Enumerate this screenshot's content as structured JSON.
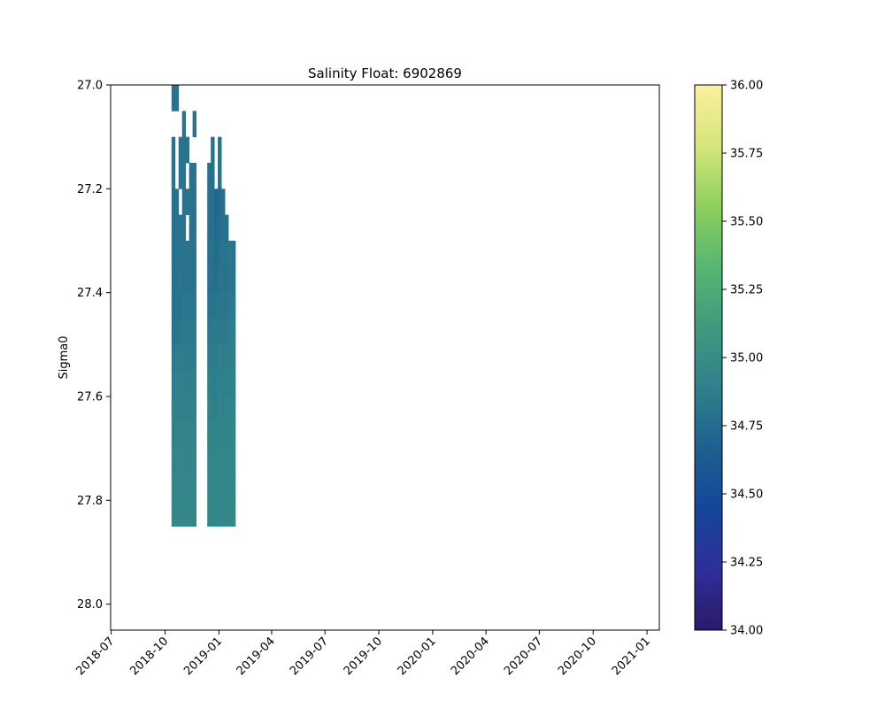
{
  "chart_data": {
    "type": "heatmap",
    "title": "Salinity Float: 6902869",
    "xlabel": "",
    "ylabel": "Sigma0",
    "x_axis": {
      "type": "date",
      "range": [
        "2018-06-30",
        "2021-01-22"
      ],
      "ticks": [
        "2018-07",
        "2018-10",
        "2019-01",
        "2019-04",
        "2019-07",
        "2019-10",
        "2020-01",
        "2020-04",
        "2020-07",
        "2020-10",
        "2021-01"
      ]
    },
    "y_axis": {
      "range": [
        27.0,
        28.05
      ],
      "inverted": true,
      "ticks": [
        "27.0",
        "27.2",
        "27.4",
        "27.6",
        "27.8",
        "28.0"
      ]
    },
    "colorbar": {
      "range": [
        34.0,
        36.0
      ],
      "ticks": [
        "34.00",
        "34.25",
        "34.50",
        "34.75",
        "35.00",
        "35.25",
        "35.50",
        "35.75",
        "36.00"
      ],
      "colormap": "haline-like",
      "stops": [
        "#2a1a6b",
        "#2e2f9a",
        "#14469a",
        "#1e6090",
        "#30808c",
        "#3f9a7e",
        "#57b672",
        "#8ed05d",
        "#d6e57e",
        "#fbf09b"
      ]
    },
    "grid": false,
    "legend": "none",
    "sigma_bins": [
      27.0,
      27.05,
      27.1,
      27.15,
      27.2,
      27.25,
      27.3,
      27.35,
      27.4,
      27.45,
      27.5,
      27.55,
      27.6,
      27.65,
      27.7,
      27.75,
      27.8
    ],
    "bin_height": 0.05,
    "profiles": [
      {
        "date": "2018-10-12",
        "values": [
          34.8,
          null,
          34.8,
          34.8,
          34.78,
          34.78,
          34.78,
          34.78,
          34.78,
          34.8,
          34.84,
          34.86,
          34.88,
          34.9,
          34.92,
          34.93,
          34.94
        ]
      },
      {
        "date": "2018-10-18",
        "values": [
          34.8,
          null,
          null,
          null,
          34.78,
          34.8,
          34.8,
          34.78,
          34.8,
          34.82,
          34.86,
          34.88,
          34.9,
          34.92,
          34.93,
          34.94,
          34.95
        ]
      },
      {
        "date": "2018-10-24",
        "values": [
          null,
          null,
          34.8,
          34.8,
          null,
          34.8,
          34.8,
          34.8,
          34.8,
          34.82,
          34.86,
          34.88,
          34.9,
          34.92,
          34.93,
          34.94,
          34.95
        ]
      },
      {
        "date": "2018-10-30",
        "values": [
          null,
          34.8,
          34.8,
          34.8,
          34.8,
          34.8,
          34.8,
          34.8,
          34.82,
          34.84,
          34.86,
          34.88,
          34.9,
          34.92,
          34.93,
          34.94,
          34.95
        ]
      },
      {
        "date": "2018-11-05",
        "values": [
          null,
          null,
          34.8,
          null,
          34.8,
          null,
          34.8,
          34.8,
          34.82,
          34.84,
          34.86,
          34.88,
          34.9,
          34.92,
          34.93,
          34.94,
          34.95
        ]
      },
      {
        "date": "2018-11-11",
        "values": [
          null,
          null,
          null,
          34.8,
          34.8,
          34.8,
          34.8,
          34.8,
          34.82,
          34.84,
          34.86,
          34.88,
          34.9,
          34.92,
          34.93,
          34.94,
          34.95
        ]
      },
      {
        "date": "2018-11-17",
        "values": [
          null,
          34.8,
          null,
          34.8,
          34.8,
          34.8,
          34.8,
          34.8,
          34.82,
          34.84,
          34.86,
          34.88,
          34.9,
          34.92,
          34.93,
          34.94,
          34.95
        ]
      },
      {
        "date": "2018-12-12",
        "values": [
          null,
          null,
          null,
          34.78,
          34.78,
          34.78,
          34.78,
          34.78,
          34.8,
          34.82,
          34.86,
          34.88,
          34.9,
          34.92,
          34.93,
          34.94,
          34.95
        ]
      },
      {
        "date": "2018-12-18",
        "values": [
          null,
          null,
          34.78,
          34.78,
          34.78,
          34.78,
          34.78,
          34.78,
          34.8,
          34.84,
          34.86,
          34.88,
          34.9,
          34.92,
          34.93,
          34.94,
          34.95
        ]
      },
      {
        "date": "2018-12-24",
        "values": [
          null,
          null,
          null,
          null,
          34.72,
          34.72,
          34.74,
          34.76,
          34.8,
          34.84,
          34.86,
          34.88,
          34.9,
          34.92,
          34.93,
          34.94,
          34.95
        ]
      },
      {
        "date": "2018-12-30",
        "values": [
          null,
          null,
          34.78,
          34.78,
          34.74,
          34.76,
          34.78,
          34.8,
          34.82,
          34.84,
          34.88,
          34.9,
          34.92,
          34.93,
          34.94,
          34.95,
          34.95
        ]
      },
      {
        "date": "2019-01-05",
        "values": [
          null,
          null,
          null,
          null,
          34.78,
          34.78,
          34.8,
          34.8,
          34.82,
          34.84,
          34.86,
          34.88,
          34.9,
          34.92,
          34.93,
          34.94,
          34.95
        ]
      },
      {
        "date": "2019-01-11",
        "values": [
          null,
          null,
          null,
          null,
          null,
          34.78,
          34.8,
          34.8,
          34.82,
          34.84,
          34.88,
          34.9,
          34.92,
          34.93,
          34.94,
          34.95,
          34.96
        ]
      },
      {
        "date": "2019-01-17",
        "values": [
          null,
          null,
          null,
          null,
          null,
          null,
          34.82,
          34.82,
          34.84,
          34.86,
          34.88,
          34.9,
          34.92,
          34.93,
          34.94,
          34.95,
          34.96
        ]
      },
      {
        "date": "2019-01-23",
        "values": [
          null,
          null,
          null,
          null,
          null,
          null,
          34.8,
          34.82,
          34.84,
          34.86,
          34.88,
          34.9,
          34.92,
          34.93,
          34.94,
          34.95,
          34.96
        ]
      }
    ]
  }
}
